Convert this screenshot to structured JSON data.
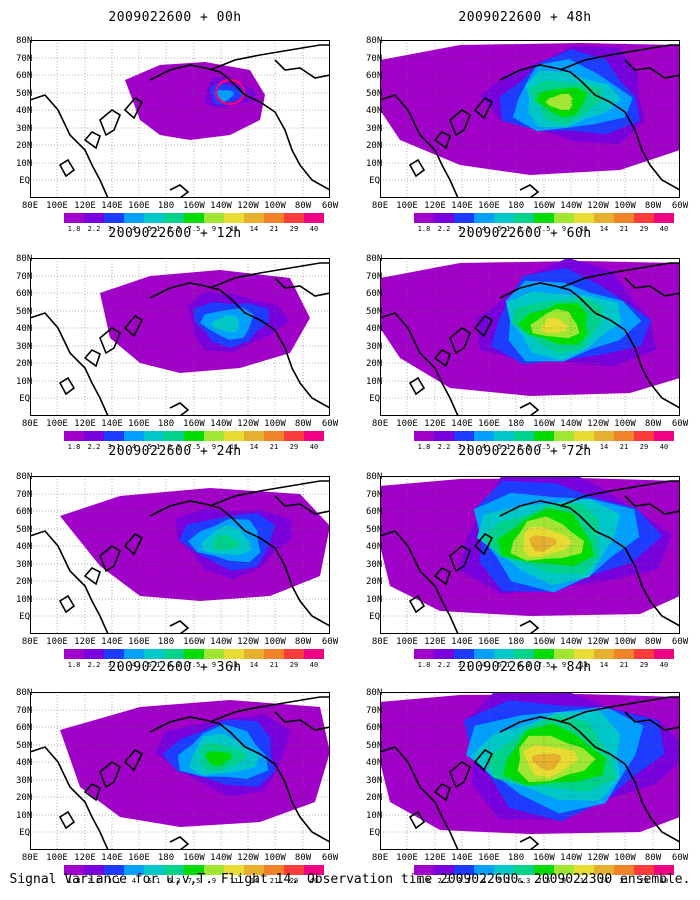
{
  "panels": [
    {
      "title": "2009022600 + 00h"
    },
    {
      "title": "2009022600 + 12h"
    },
    {
      "title": "2009022600 + 24h"
    },
    {
      "title": "2009022600 + 36h"
    },
    {
      "title": "2009022600 + 48h"
    },
    {
      "title": "2009022600 + 60h"
    },
    {
      "title": "2009022600 + 72h"
    },
    {
      "title": "2009022600 + 84h"
    }
  ],
  "lat_labels": [
    "80N",
    "70N",
    "60N",
    "50N",
    "40N",
    "30N",
    "20N",
    "10N",
    "EQ"
  ],
  "lon_labels": [
    "80E",
    "100E",
    "120E",
    "140E",
    "160E",
    "180",
    "160W",
    "140W",
    "120W",
    "100W",
    "80W",
    "60W"
  ],
  "colorbar": {
    "labels": [
      "1.8",
      "2.2",
      "3.1",
      "4",
      "5.1",
      "6.3",
      "7.5",
      "9",
      "11",
      "14",
      "21",
      "29",
      "40"
    ],
    "colors": [
      "#a000c8",
      "#7800dc",
      "#1e3cff",
      "#00a0ff",
      "#00c8c8",
      "#00d28c",
      "#00dc00",
      "#a0e632",
      "#e6dc32",
      "#e6af2d",
      "#f08228",
      "#fa3c3c",
      "#f00082"
    ]
  },
  "footer": "Signal Variance for u,v,T. Flight 14. Observation time 2009022600. 2009022300 ensemble."
}
